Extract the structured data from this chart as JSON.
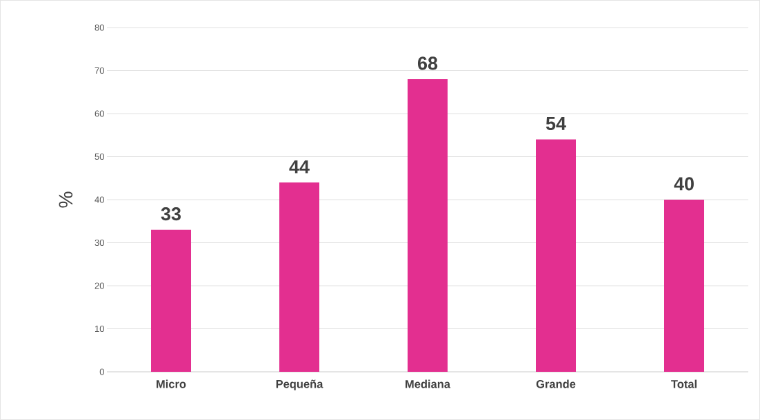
{
  "chart_data": {
    "type": "bar",
    "ylabel": "%",
    "categories": [
      "Micro",
      "Pequeña",
      "Mediana",
      "Grande",
      "Total"
    ],
    "values": [
      33,
      44,
      68,
      54,
      40
    ],
    "color": "#e32f90",
    "ylim": [
      0,
      80
    ],
    "yticks": [
      0,
      10,
      20,
      30,
      40,
      50,
      60,
      70,
      80
    ],
    "grid": "y",
    "data_labels": true
  }
}
